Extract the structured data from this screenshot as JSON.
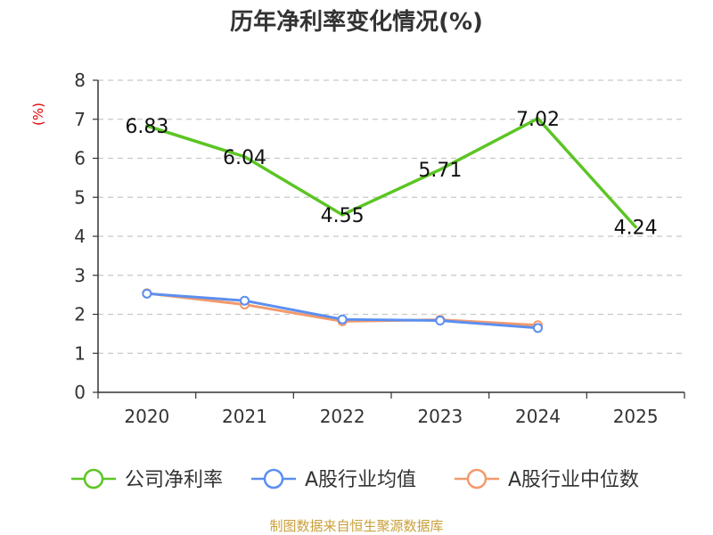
{
  "chart_data": {
    "type": "line",
    "title": "历年净利率变化情况(%)",
    "ylabel": "(%)",
    "xlabel": "",
    "categories": [
      "2020",
      "2021",
      "2022",
      "2023",
      "2024",
      "2025"
    ],
    "ylim": [
      0,
      8
    ],
    "yticks": [
      0,
      1,
      2,
      3,
      4,
      5,
      6,
      7,
      8
    ],
    "grid": true,
    "legend_position": "bottom",
    "series": [
      {
        "name": "公司净利率",
        "color": "#5cc524",
        "values": [
          6.83,
          6.04,
          4.55,
          5.71,
          7.02,
          4.24
        ],
        "labels": [
          "6.83",
          "6.04",
          "4.55",
          "5.71",
          "7.02",
          "4.24"
        ],
        "show_points": false
      },
      {
        "name": "A股行业均值",
        "color": "#5b8ff0",
        "values": [
          2.53,
          2.35,
          1.87,
          1.84,
          1.65,
          null
        ],
        "show_points": true
      },
      {
        "name": "A股行业中位数",
        "color": "#f39a6b",
        "values": [
          2.54,
          2.25,
          1.82,
          1.86,
          1.72,
          null
        ],
        "show_points": true
      }
    ],
    "source": "制图数据来自恒生聚源数据库"
  }
}
